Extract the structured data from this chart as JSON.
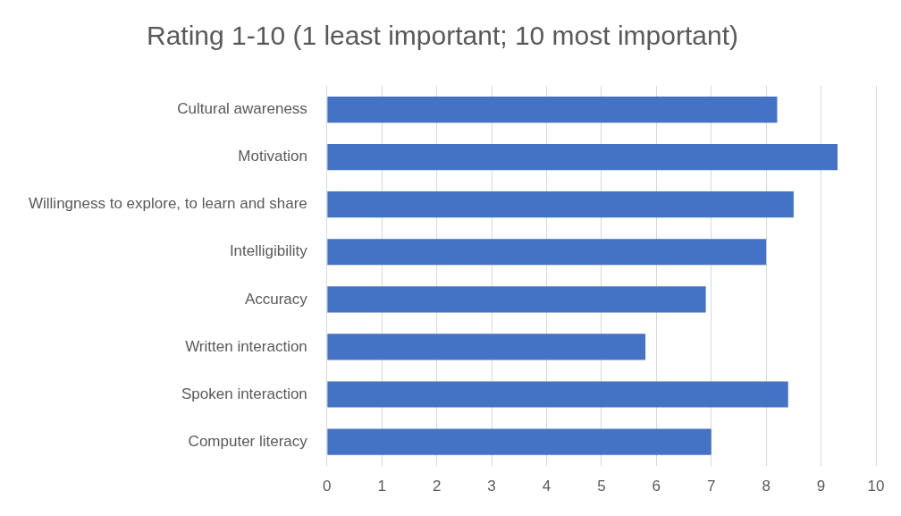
{
  "chart_data": {
    "type": "bar",
    "orientation": "horizontal",
    "title": "Rating 1-10 (1 least important; 10 most important)",
    "categories": [
      "Cultural awareness",
      "Motivation",
      "Willingness to explore, to learn and share",
      "Intelligibility",
      "Accuracy",
      "Written interaction",
      "Spoken interaction",
      "Computer literacy"
    ],
    "values": [
      8.2,
      9.3,
      8.5,
      8.0,
      6.9,
      5.8,
      8.4,
      7.0
    ],
    "color": "#4472c4",
    "xlim": [
      0,
      10
    ],
    "xticks": [
      0,
      1,
      2,
      3,
      4,
      5,
      6,
      7,
      8,
      9,
      10
    ],
    "grid": "x"
  }
}
